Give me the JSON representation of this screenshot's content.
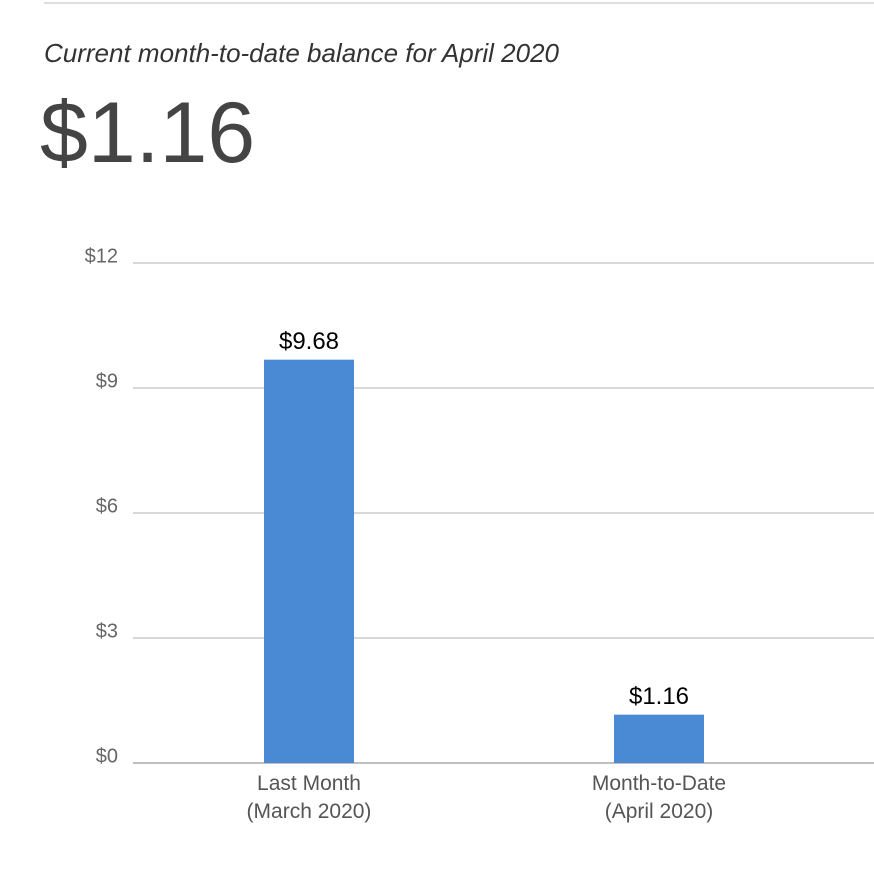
{
  "header": {
    "subtitle": "Current month-to-date balance for April 2020",
    "balance": "$1.16"
  },
  "chart_data": {
    "type": "bar",
    "categories": [
      "Last Month\n(March 2020)",
      "Month-to-Date\n(April 2020)"
    ],
    "values": [
      9.68,
      1.16
    ],
    "value_labels": [
      "$9.68",
      "$1.16"
    ],
    "color": "#4a89d4",
    "ylim": [
      0,
      12
    ],
    "yticks": [
      {
        "value": 0,
        "label": "$0"
      },
      {
        "value": 3,
        "label": "$3"
      },
      {
        "value": 6,
        "label": "$6"
      },
      {
        "value": 9,
        "label": "$9"
      },
      {
        "value": 12,
        "label": "$12"
      }
    ],
    "grid": true
  }
}
